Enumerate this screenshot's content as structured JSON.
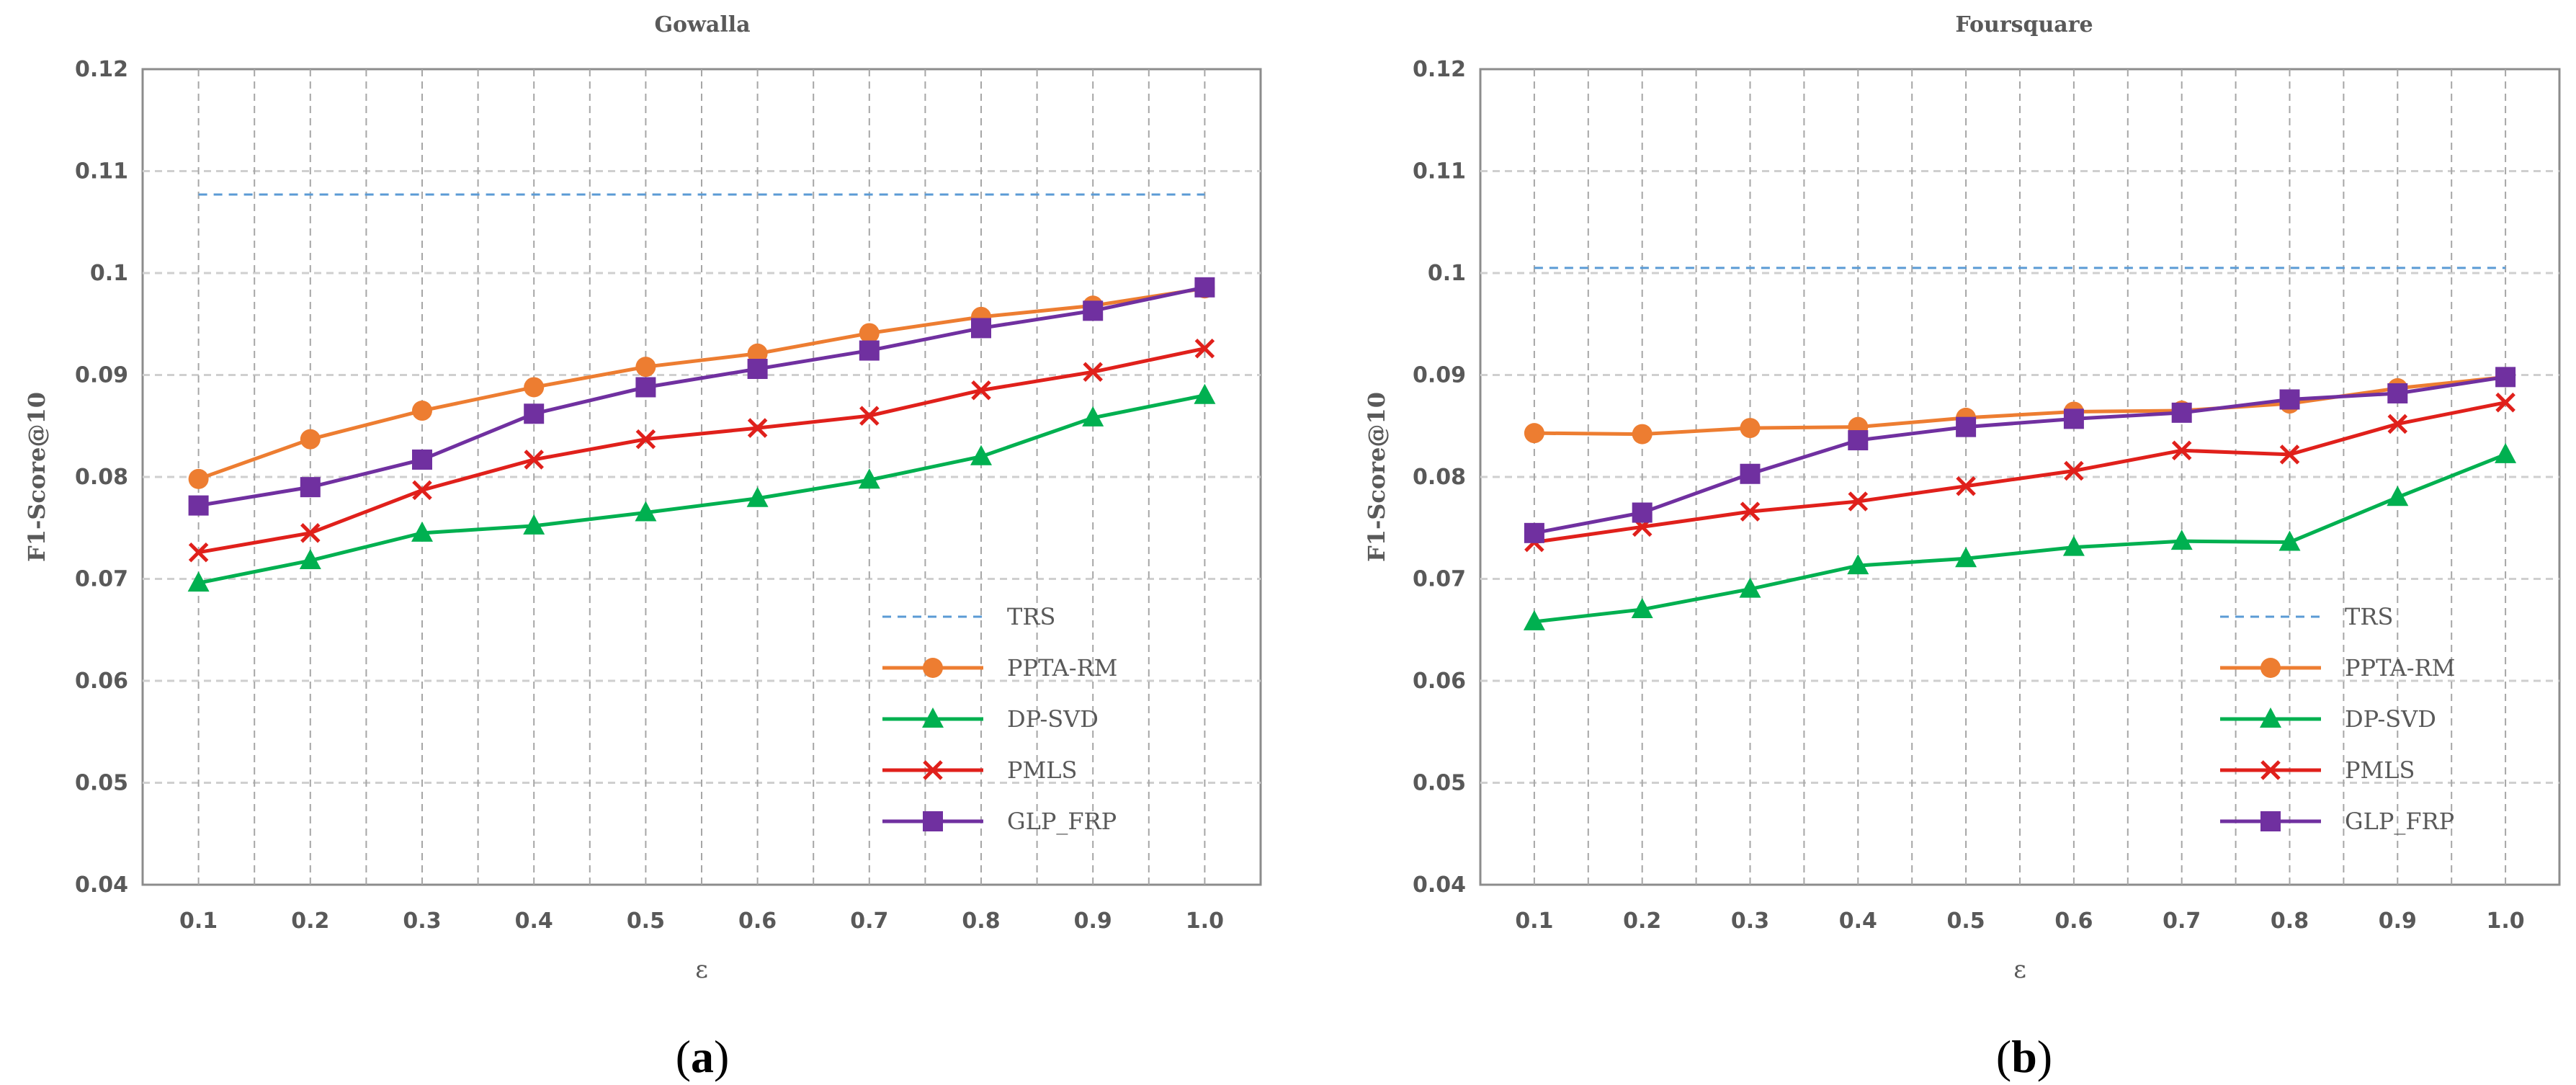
{
  "chart_data": [
    {
      "type": "line",
      "title": "Gowalla",
      "xlabel": "ε",
      "ylabel": "F1-Score@10",
      "caption_letter": "a",
      "categories": [
        "0.1",
        "0.2",
        "0.3",
        "0.4",
        "0.5",
        "0.6",
        "0.7",
        "0.8",
        "0.9",
        "1.0"
      ],
      "ylim": [
        0.04,
        0.12
      ],
      "yticks": [
        "0.04",
        "0.05",
        "0.06",
        "0.07",
        "0.08",
        "0.09",
        "0.1",
        "0.11",
        "0.12"
      ],
      "grid": true,
      "legend_position": "bottom-right",
      "series": [
        {
          "name": "TRS",
          "color": "#5B9BD5",
          "style": "dashed",
          "marker": "none",
          "values": [
            0.1077,
            0.1077,
            0.1077,
            0.1077,
            0.1077,
            0.1077,
            0.1077,
            0.1077,
            0.1077,
            0.1077
          ]
        },
        {
          "name": "PPTA-RM",
          "color": "#ED7D31",
          "style": "solid",
          "marker": "circle",
          "values": [
            0.0798,
            0.0837,
            0.0865,
            0.0888,
            0.0908,
            0.0921,
            0.0941,
            0.0957,
            0.0968,
            0.0985
          ]
        },
        {
          "name": "DP-SVD",
          "color": "#00B050",
          "style": "solid",
          "marker": "triangle",
          "values": [
            0.0696,
            0.0718,
            0.0745,
            0.0752,
            0.0765,
            0.0779,
            0.0797,
            0.082,
            0.0858,
            0.088
          ]
        },
        {
          "name": "PMLS",
          "color": "#E0201B",
          "style": "solid",
          "marker": "x",
          "values": [
            0.0726,
            0.0745,
            0.0787,
            0.0817,
            0.0837,
            0.0848,
            0.086,
            0.0885,
            0.0903,
            0.0926
          ]
        },
        {
          "name": "GLP_FRP",
          "color": "#7030A0",
          "style": "solid",
          "marker": "square",
          "values": [
            0.0772,
            0.079,
            0.0817,
            0.0862,
            0.0888,
            0.0906,
            0.0924,
            0.0946,
            0.0963,
            0.0986
          ]
        }
      ]
    },
    {
      "type": "line",
      "title": "Foursquare",
      "xlabel": "ε",
      "ylabel": "F1-Score@10",
      "caption_letter": "b",
      "categories": [
        "0.1",
        "0.2",
        "0.3",
        "0.4",
        "0.5",
        "0.6",
        "0.7",
        "0.8",
        "0.9",
        "1.0"
      ],
      "ylim": [
        0.04,
        0.12
      ],
      "yticks": [
        "0.04",
        "0.05",
        "0.06",
        "0.07",
        "0.08",
        "0.09",
        "0.1",
        "0.11",
        "0.12"
      ],
      "grid": true,
      "legend_position": "bottom-right",
      "series": [
        {
          "name": "TRS",
          "color": "#5B9BD5",
          "style": "dashed",
          "marker": "none",
          "values": [
            0.1005,
            0.1005,
            0.1005,
            0.1005,
            0.1005,
            0.1005,
            0.1005,
            0.1005,
            0.1005,
            0.1005
          ]
        },
        {
          "name": "PPTA-RM",
          "color": "#ED7D31",
          "style": "solid",
          "marker": "circle",
          "values": [
            0.0843,
            0.0842,
            0.0848,
            0.0849,
            0.0858,
            0.0864,
            0.0865,
            0.0872,
            0.0887,
            0.0898
          ]
        },
        {
          "name": "DP-SVD",
          "color": "#00B050",
          "style": "solid",
          "marker": "triangle",
          "values": [
            0.0658,
            0.067,
            0.069,
            0.0713,
            0.072,
            0.0731,
            0.0737,
            0.0736,
            0.078,
            0.0822
          ]
        },
        {
          "name": "PMLS",
          "color": "#E0201B",
          "style": "solid",
          "marker": "x",
          "values": [
            0.0736,
            0.0751,
            0.0766,
            0.0776,
            0.0791,
            0.0806,
            0.0826,
            0.0822,
            0.0852,
            0.0873
          ]
        },
        {
          "name": "GLP_FRP",
          "color": "#7030A0",
          "style": "solid",
          "marker": "square",
          "values": [
            0.0745,
            0.0765,
            0.0803,
            0.0836,
            0.0849,
            0.0857,
            0.0863,
            0.0876,
            0.0882,
            0.0898
          ]
        }
      ]
    }
  ]
}
